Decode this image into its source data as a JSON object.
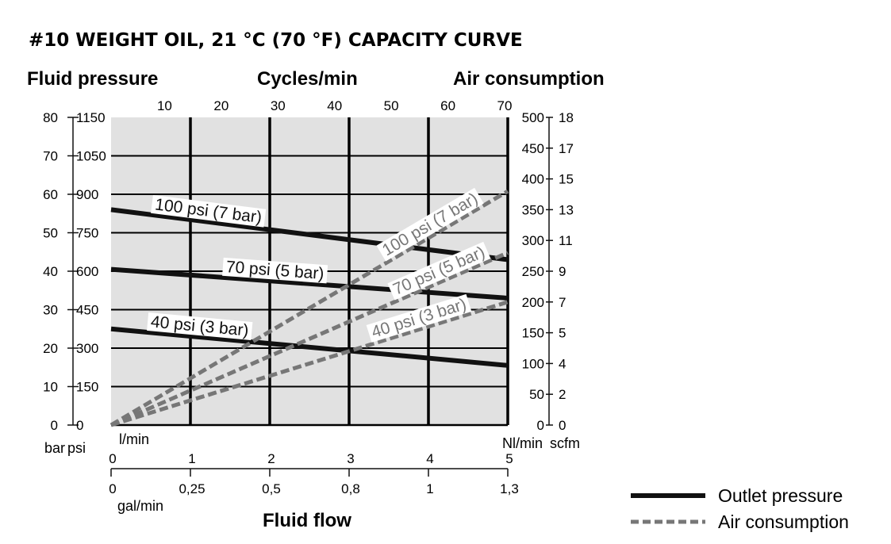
{
  "title": "#10 WEIGHT OIL, 21 °C (70 °F) CAPACITY CURVE",
  "colors": {
    "plot_bg": "#e1e1e1",
    "outlet": "#111111",
    "air": "#777777"
  },
  "chart_data": {
    "type": "line",
    "title": "#10 WEIGHT OIL, 21 °C (70 °F) CAPACITY CURVE",
    "grid": true,
    "legend_position": "bottom-right",
    "x_axis": {
      "label": "Fluid flow",
      "primary": {
        "unit": "l/min",
        "range": [
          0,
          5
        ],
        "ticks": [
          "0",
          "1",
          "2",
          "3",
          "4",
          "5"
        ]
      },
      "secondary": {
        "unit": "gal/min",
        "ticks": [
          "0",
          "0,25",
          "0,5",
          "0,8",
          "1",
          "1,3"
        ]
      }
    },
    "top_axis": {
      "label": "Cycles/min",
      "range": [
        0,
        70
      ],
      "ticks": [
        "10",
        "20",
        "30",
        "40",
        "50",
        "60",
        "70"
      ]
    },
    "y_left": {
      "label": "Fluid pressure",
      "unit_bar": "bar",
      "unit_psi": "psi",
      "range": [
        0,
        80
      ],
      "bar_ticks": [
        "0",
        "10",
        "20",
        "30",
        "40",
        "50",
        "60",
        "70",
        "80"
      ],
      "psi_ticks": [
        "0",
        "150",
        "300",
        "450",
        "600",
        "750",
        "900",
        "1050",
        "1150"
      ]
    },
    "y_right": {
      "label": "Air consumption",
      "unit_nl": "Nl/min",
      "unit_scfm": "scfm",
      "range": [
        0,
        500
      ],
      "nl_ticks": [
        "0",
        "50",
        "100",
        "150",
        "200",
        "250",
        "300",
        "350",
        "400",
        "450",
        "500"
      ],
      "scfm_ticks": [
        "0",
        "2",
        "4",
        "5",
        "7",
        "9",
        "11",
        "13",
        "15",
        "17",
        "18"
      ]
    },
    "series": [
      {
        "name": "100 psi (7 bar)",
        "kind": "outlet",
        "x": [
          0,
          5
        ],
        "y": [
          56,
          43
        ]
      },
      {
        "name": "70 psi (5 bar)",
        "kind": "outlet",
        "x": [
          0,
          5
        ],
        "y": [
          40.5,
          33
        ]
      },
      {
        "name": "40 psi (3 bar)",
        "kind": "outlet",
        "x": [
          0,
          5
        ],
        "y": [
          25,
          15.5
        ]
      },
      {
        "name": "100 psi (7 bar)",
        "kind": "air",
        "x": [
          0,
          5
        ],
        "y": [
          0,
          380
        ]
      },
      {
        "name": "70 psi (5 bar)",
        "kind": "air",
        "x": [
          0,
          5
        ],
        "y": [
          0,
          280
        ]
      },
      {
        "name": "40 psi (3 bar)",
        "kind": "air",
        "x": [
          0,
          5
        ],
        "y": [
          0,
          200
        ]
      }
    ]
  },
  "legend": {
    "outlet_label": "Outlet pressure",
    "air_label": "Air consumption"
  }
}
